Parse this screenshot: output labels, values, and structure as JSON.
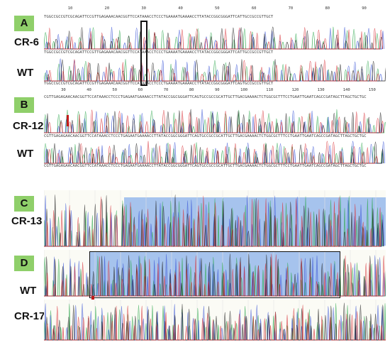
{
  "panels": [
    {
      "id": "A",
      "rows": [
        "CR-6",
        "WT"
      ]
    },
    {
      "id": "B",
      "rows": [
        "CR-12",
        "WT"
      ]
    },
    {
      "id": "C",
      "rows": [
        "CR-13"
      ]
    },
    {
      "id": "D",
      "rows": [
        "WT",
        "CR-17"
      ]
    }
  ],
  "rulerA": [
    "10",
    "20",
    "30",
    "40",
    "50",
    "60",
    "70",
    "80",
    "90"
  ],
  "rulerB": [
    "30",
    "40",
    "50",
    "60",
    "70",
    "80",
    "90",
    "100",
    "110",
    "120",
    "130",
    "140",
    "150"
  ],
  "seqA_top": "TGGCCGCCGTCGCAGATTCCGTTGAGAAACAACGGTTCCATAAACCTCCCTGAAAATGAAAACCTTATACCGGCGGGATTCATTGCCGCCGTTGCT",
  "seqA_cr6": "TGGCCGCCGTCGCAGATTCCGTTGAGAAACAACGGTTCCATAAACCTCCCTGAAAATGAAAACCTTATACCGGCGGGATTCATTGCCGCCGTTGCT",
  "seqA_wt": "TGGCCGCCGTCGCAGATTCCGTTGAGAAACAACGGTTCCATAAACCTCCCTGAAAATGAAAACCTTATACCGGCGGGATTCAGTGCCGCCGTTGCT",
  "seqB_top": "CGTTGAGAGAACAACGGTTCCATAAACCTCCCTGAGAATGAAAACCTTATACCGGCGGGATTCAGTGCCGCCGCATTGCTTGACGAAAACTCTGGCGCTTTCCTGAATTGAATCAGCCGATAGCTTAGCTGCTGC",
  "seqB_cr12": "CGTTGAGAGAACAACGGTTCCATAAACCTCCCTGAGAATGAAAACCTTATACCGGCGGGATTCAGTGCCGCCGCATTGCTTGACGAAAACTCTGGCGCTTTCCTGAATTGAATCAGCCGATAGCTTAGCTGCTGC",
  "seqB_wt": "CGTTGAGAGAACAACGGTTCCATAAACCTCCCTGAGAATGAAAACCTTATACCGGCGGGATTCAGTGCCGCCGCATTGCTTGACGAAAACTCTGGCGCTTTCCTGAATTGAATCAGCCGATAGCTTAGCTGCTGC",
  "colors": {
    "A": "#2fa84f",
    "C": "#3a55d6",
    "G": "#222222",
    "T": "#d8333a",
    "badge": "#8fcf6a",
    "shade": "#6096e6"
  }
}
